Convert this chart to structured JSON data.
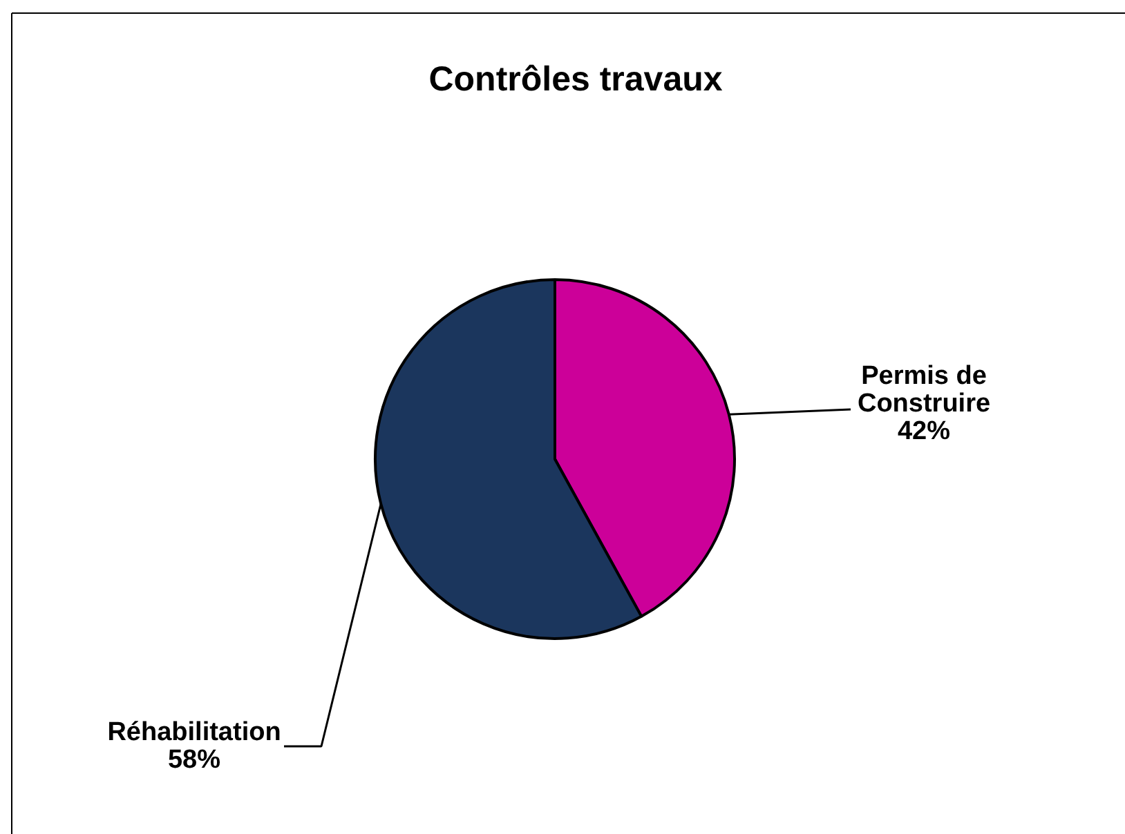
{
  "chart_data": {
    "type": "pie",
    "title": "Contrôles travaux",
    "categories": [
      "Permis de Construire",
      "Réhabilitation"
    ],
    "values": [
      42,
      58
    ],
    "colors": [
      "#cc0099",
      "#1b365d"
    ],
    "value_labels": [
      "42%",
      "58%"
    ]
  }
}
